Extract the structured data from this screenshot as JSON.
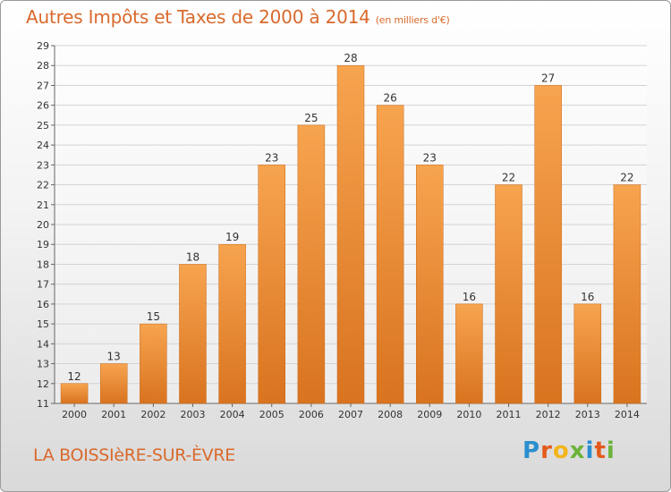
{
  "title": "Autres Impôts et Taxes de 2000 à 2014",
  "title_unit": "(en milliers d'€)",
  "commune": "LA BOISSIèRE-SUR-ÈVRE",
  "logo": {
    "p": "P",
    "r": "r",
    "o": "o",
    "x": "x",
    "i1": "i",
    "t": "t",
    "i2": "i"
  },
  "colors": {
    "bar_top": "#f7a44f",
    "bar_bottom": "#d9731f",
    "text": "#d9692c"
  },
  "chart_data": {
    "type": "bar",
    "title": "Autres Impôts et Taxes de 2000 à 2014",
    "categories": [
      "2000",
      "2001",
      "2002",
      "2003",
      "2004",
      "2005",
      "2006",
      "2007",
      "2008",
      "2009",
      "2010",
      "2011",
      "2012",
      "2013",
      "2014"
    ],
    "values": [
      12,
      13,
      15,
      18,
      19,
      23,
      25,
      28,
      26,
      23,
      16,
      22,
      27,
      16,
      22
    ],
    "ylim": [
      11,
      29
    ],
    "yticks": [
      11,
      12,
      13,
      14,
      15,
      16,
      17,
      18,
      19,
      20,
      21,
      22,
      23,
      24,
      25,
      26,
      27,
      28,
      29
    ],
    "grid": true,
    "data_labels": true
  }
}
